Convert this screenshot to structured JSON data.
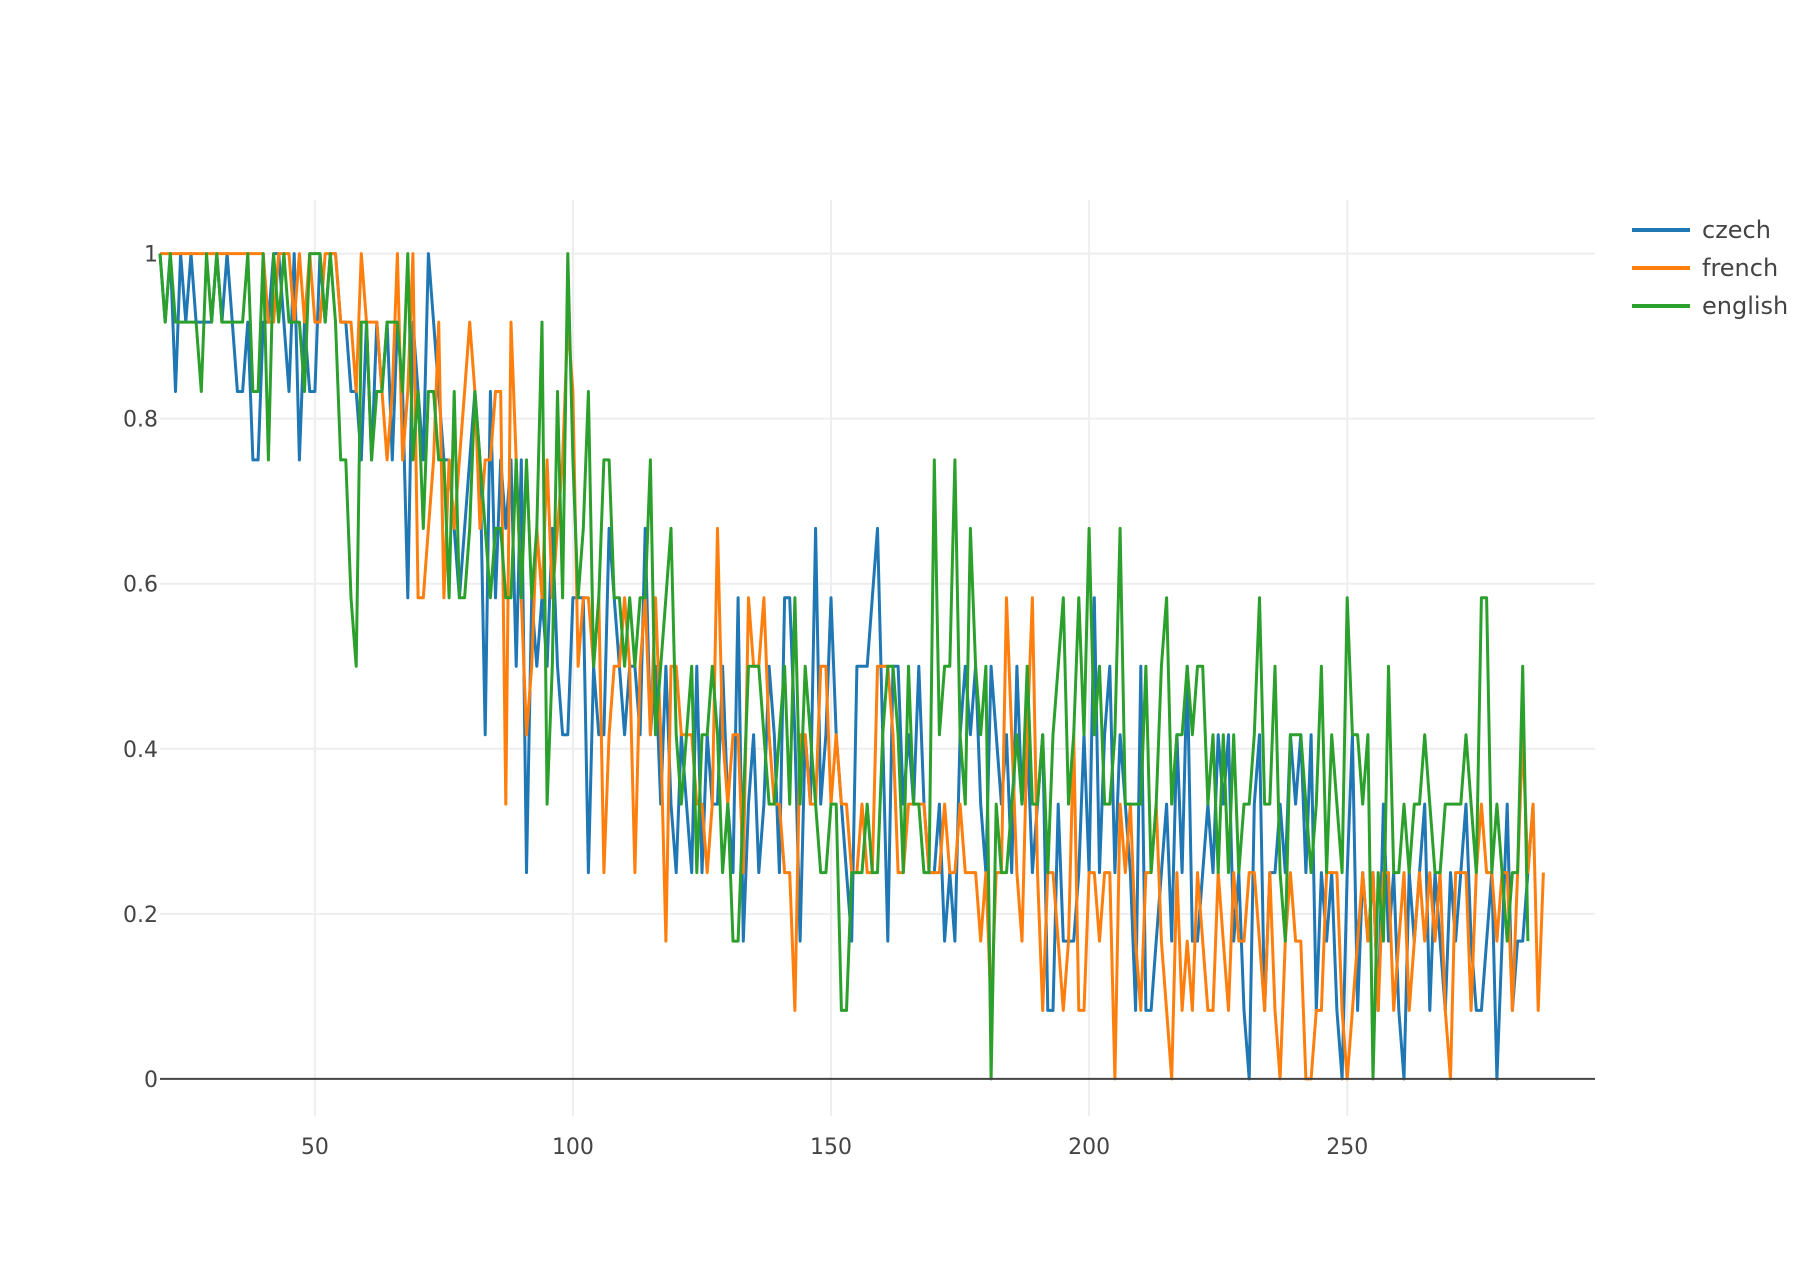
{
  "chart_data": {
    "type": "line",
    "title": "",
    "xlabel": "",
    "ylabel": "",
    "xlim": [
      20,
      298
    ],
    "ylim": [
      -0.045,
      1.065
    ],
    "x_ticks": [
      50,
      100,
      150,
      200,
      250
    ],
    "x_tick_labels": [
      "50",
      "100",
      "150",
      "200",
      "250"
    ],
    "y_ticks": [
      0,
      0.2,
      0.4,
      0.6,
      0.8,
      1
    ],
    "y_tick_labels": [
      "0",
      "0.2",
      "0.4",
      "0.6",
      "0.8",
      "1"
    ],
    "grid": true,
    "legend_position": "top-right",
    "x_start": 20,
    "series": [
      {
        "name": "czech",
        "color": "#1f77b4",
        "values": [
          1,
          0.917,
          1,
          0.833,
          1,
          0.917,
          1,
          0.917,
          0.917,
          0.917,
          0.917,
          1,
          0.917,
          1,
          0.917,
          0.833,
          0.833,
          0.917,
          0.75,
          0.75,
          0.917,
          0.917,
          1,
          1,
          0.917,
          0.833,
          1,
          0.75,
          0.917,
          0.833,
          0.833,
          1,
          0.917,
          1,
          1,
          0.917,
          0.917,
          0.833,
          0.833,
          0.75,
          0.917,
          0.75,
          0.917,
          0.833,
          0.917,
          0.75,
          0.917,
          0.833,
          0.583,
          0.917,
          0.833,
          0.75,
          1,
          0.917,
          0.833,
          0.75,
          0.75,
          0.667,
          0.583,
          0.667,
          0.75,
          0.833,
          0.75,
          0.417,
          0.833,
          0.583,
          0.75,
          0.667,
          0.75,
          0.5,
          0.75,
          0.25,
          0.583,
          0.5,
          0.583,
          0.5,
          0.667,
          0.5,
          0.417,
          0.417,
          0.583,
          0.583,
          0.583,
          0.25,
          0.5,
          0.417,
          0.417,
          0.667,
          0.583,
          0.5,
          0.417,
          0.5,
          0.5,
          0.417,
          0.667,
          0.417,
          0.5,
          0.333,
          0.5,
          0.333,
          0.25,
          0.417,
          0.333,
          0.25,
          0.5,
          0.25,
          0.417,
          0.333,
          0.333,
          0.5,
          0.333,
          0.25,
          0.583,
          0.167,
          0.333,
          0.417,
          0.25,
          0.333,
          0.5,
          0.417,
          0.25,
          0.583,
          0.583,
          0.417,
          0.167,
          0.417,
          0.333,
          0.667,
          0.333,
          0.417,
          0.583,
          0.417,
          0.333,
          0.25,
          0.167,
          0.5,
          0.5,
          0.5,
          0.583,
          0.667,
          0.417,
          0.167,
          0.5,
          0.5,
          0.333,
          0.417,
          0.333,
          0.5,
          0.333,
          0.25,
          0.25,
          0.333,
          0.167,
          0.25,
          0.167,
          0.417,
          0.5,
          0.417,
          0.5,
          0.333,
          0.25,
          0.5,
          0.417,
          0.333,
          0.417,
          0.25,
          0.5,
          0.333,
          0.417,
          0.25,
          0.333,
          0.417,
          0.083,
          0.083,
          0.333,
          0.167,
          0.167,
          0.167,
          0.25,
          0.417,
          0.25,
          0.583,
          0.25,
          0.417,
          0.5,
          0.25,
          0.417,
          0.333,
          0.25,
          0.083,
          0.5,
          0.083,
          0.083,
          0.167,
          0.25,
          0.333,
          0.167,
          0.417,
          0.25,
          0.5,
          0.167,
          0.167,
          0.25,
          0.333,
          0.25,
          0.417,
          0.333,
          0.417,
          0.167,
          0.25,
          0.083,
          0,
          0.333,
          0.417,
          0.083,
          0.25,
          0.25,
          0.333,
          0.25,
          0.417,
          0.333,
          0.417,
          0.25,
          0.417,
          0.083,
          0.25,
          0.167,
          0.25,
          0.083,
          0,
          0.25,
          0.417,
          0.083,
          0.25,
          0.167,
          0.25,
          0.083,
          0.333,
          0.167,
          0.25,
          0.083,
          0,
          0.25,
          0.167,
          0.25,
          0.333,
          0.083,
          0.25,
          0.167,
          0.083,
          0.25,
          0.167,
          0.25,
          0.333,
          0.167,
          0.083,
          0.083,
          0.167,
          0.25,
          0,
          0.167,
          0.333,
          0.083,
          0.167,
          0.167,
          0.25,
          0.333
        ]
      },
      {
        "name": "french",
        "color": "#ff7f0e",
        "values": [
          1,
          1,
          1,
          1,
          1,
          1,
          1,
          1,
          1,
          1,
          1,
          1,
          1,
          1,
          1,
          1,
          1,
          1,
          1,
          1,
          1,
          0.917,
          0.917,
          1,
          1,
          1,
          0.917,
          1,
          0.917,
          1,
          0.917,
          0.917,
          1,
          1,
          1,
          0.917,
          0.917,
          0.917,
          0.833,
          1,
          0.917,
          0.917,
          0.917,
          0.833,
          0.75,
          0.833,
          1,
          0.75,
          0.833,
          1,
          0.583,
          0.583,
          0.667,
          0.75,
          0.917,
          0.583,
          0.75,
          0.667,
          0.75,
          0.833,
          0.917,
          0.833,
          0.667,
          0.75,
          0.75,
          0.833,
          0.833,
          0.333,
          0.917,
          0.75,
          0.583,
          0.417,
          0.5,
          0.667,
          0.583,
          0.75,
          0.583,
          0.667,
          0.75,
          0.917,
          0.833,
          0.5,
          0.583,
          0.583,
          0.5,
          0.583,
          0.25,
          0.417,
          0.5,
          0.5,
          0.583,
          0.5,
          0.25,
          0.5,
          0.583,
          0.417,
          0.583,
          0.417,
          0.167,
          0.5,
          0.5,
          0.417,
          0.417,
          0.417,
          0.333,
          0.333,
          0.25,
          0.333,
          0.667,
          0.417,
          0.333,
          0.417,
          0.417,
          0.25,
          0.583,
          0.5,
          0.5,
          0.583,
          0.417,
          0.333,
          0.333,
          0.25,
          0.25,
          0.083,
          0.417,
          0.417,
          0.333,
          0.333,
          0.5,
          0.5,
          0.333,
          0.417,
          0.333,
          0.333,
          0.25,
          0.25,
          0.333,
          0.25,
          0.25,
          0.5,
          0.5,
          0.5,
          0.417,
          0.25,
          0.25,
          0.333,
          0.333,
          0.333,
          0.333,
          0.25,
          0.25,
          0.25,
          0.333,
          0.25,
          0.25,
          0.333,
          0.25,
          0.25,
          0.25,
          0.167,
          0.25,
          0.083,
          0.25,
          0.25,
          0.583,
          0.417,
          0.25,
          0.167,
          0.417,
          0.583,
          0.25,
          0.083,
          0.25,
          0.25,
          0.167,
          0.083,
          0.167,
          0.417,
          0.083,
          0.083,
          0.25,
          0.25,
          0.167,
          0.25,
          0.25,
          0,
          0.333,
          0.25,
          0.333,
          0.167,
          0.083,
          0.25,
          0.25,
          0.333,
          0.167,
          0.083,
          0,
          0.25,
          0.083,
          0.167,
          0.083,
          0.25,
          0.167,
          0.083,
          0.083,
          0.25,
          0.167,
          0.083,
          0.25,
          0.167,
          0.167,
          0.25,
          0.25,
          0.167,
          0.083,
          0.25,
          0.083,
          0,
          0.167,
          0.25,
          0.167,
          0.167,
          0,
          0,
          0.083,
          0.083,
          0.25,
          0.25,
          0.25,
          0.083,
          0,
          0.083,
          0.167,
          0.25,
          0.167,
          0.25,
          0.083,
          0.25,
          0.25,
          0.083,
          0.167,
          0.25,
          0.083,
          0.167,
          0.25,
          0.167,
          0.25,
          0.167,
          0.25,
          0.083,
          0,
          0.25,
          0.25,
          0.25,
          0.083,
          0.25,
          0.333,
          0.25,
          0.25,
          0.167,
          0.25,
          0.25,
          0.083,
          0.25,
          0.417,
          0.25,
          0.333,
          0.083,
          0.25
        ]
      },
      {
        "name": "english",
        "color": "#2ca02c",
        "values": [
          1,
          0.917,
          1,
          0.917,
          0.917,
          0.917,
          0.917,
          0.917,
          0.833,
          1,
          0.917,
          1,
          0.917,
          0.917,
          0.917,
          0.917,
          0.917,
          1,
          0.833,
          0.833,
          1,
          0.75,
          1,
          0.917,
          1,
          0.917,
          0.917,
          0.917,
          0.833,
          1,
          1,
          1,
          0.917,
          1,
          0.917,
          0.75,
          0.75,
          0.583,
          0.5,
          0.917,
          0.917,
          0.75,
          0.833,
          0.833,
          0.917,
          0.917,
          0.917,
          0.833,
          1,
          0.75,
          0.833,
          0.667,
          0.833,
          0.833,
          0.75,
          0.75,
          0.583,
          0.833,
          0.583,
          0.583,
          0.667,
          0.833,
          0.75,
          0.667,
          0.583,
          0.667,
          0.667,
          0.583,
          0.583,
          0.75,
          0.583,
          0.75,
          0.583,
          0.667,
          0.917,
          0.333,
          0.5,
          0.833,
          0.583,
          1,
          0.75,
          0.583,
          0.667,
          0.833,
          0.5,
          0.583,
          0.75,
          0.75,
          0.583,
          0.583,
          0.5,
          0.583,
          0.5,
          0.583,
          0.583,
          0.75,
          0.417,
          0.5,
          0.583,
          0.667,
          0.417,
          0.333,
          0.417,
          0.5,
          0.25,
          0.417,
          0.417,
          0.5,
          0.417,
          0.25,
          0.333,
          0.167,
          0.167,
          0.333,
          0.5,
          0.5,
          0.5,
          0.417,
          0.333,
          0.333,
          0.417,
          0.5,
          0.333,
          0.583,
          0.333,
          0.5,
          0.417,
          0.333,
          0.25,
          0.25,
          0.333,
          0.333,
          0.083,
          0.083,
          0.25,
          0.25,
          0.25,
          0.333,
          0.25,
          0.25,
          0.417,
          0.5,
          0.5,
          0.417,
          0.25,
          0.5,
          0.333,
          0.333,
          0.25,
          0.25,
          0.75,
          0.417,
          0.5,
          0.5,
          0.75,
          0.417,
          0.333,
          0.667,
          0.5,
          0.417,
          0.5,
          0,
          0.333,
          0.25,
          0.25,
          0.333,
          0.417,
          0.333,
          0.5,
          0.333,
          0.333,
          0.417,
          0.25,
          0.417,
          0.5,
          0.583,
          0.333,
          0.417,
          0.583,
          0.417,
          0.667,
          0.417,
          0.5,
          0.333,
          0.333,
          0.417,
          0.667,
          0.333,
          0.333,
          0.333,
          0.333,
          0.5,
          0.25,
          0.333,
          0.5,
          0.583,
          0.333,
          0.417,
          0.417,
          0.5,
          0.417,
          0.5,
          0.5,
          0.333,
          0.417,
          0.25,
          0.417,
          0.25,
          0.417,
          0.25,
          0.333,
          0.333,
          0.417,
          0.583,
          0.333,
          0.333,
          0.5,
          0.25,
          0.167,
          0.417,
          0.417,
          0.417,
          0.333,
          0.25,
          0.333,
          0.5,
          0.25,
          0.417,
          0.333,
          0.25,
          0.583,
          0.417,
          0.417,
          0.333,
          0.417,
          0,
          0.25,
          0.167,
          0.5,
          0.25,
          0.25,
          0.333,
          0.25,
          0.333,
          0.333,
          0.417,
          0.333,
          0.25,
          0.25,
          0.333,
          0.333,
          0.333,
          0.333,
          0.417,
          0.333,
          0.25,
          0.583,
          0.583,
          0.25,
          0.333,
          0.25,
          0.167,
          0.25,
          0.25,
          0.5,
          0.167
        ]
      }
    ]
  }
}
